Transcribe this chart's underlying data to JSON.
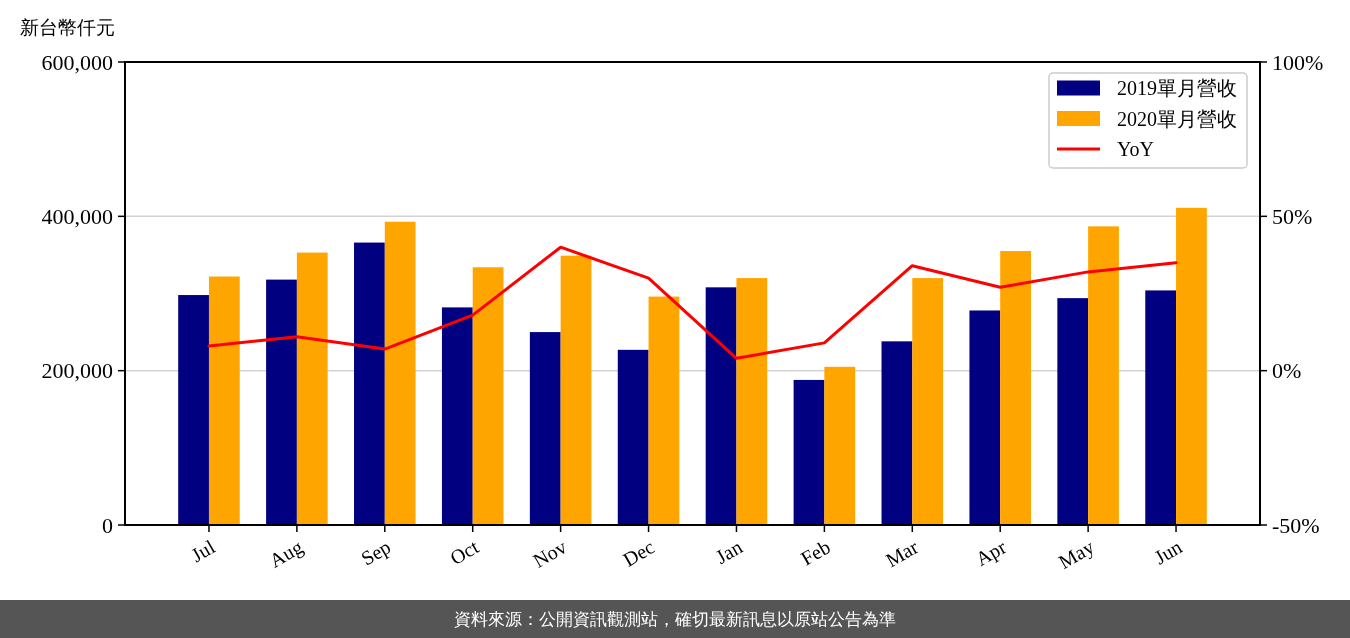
{
  "chart_data": {
    "type": "bar",
    "ylabel": "新台幣仟元",
    "categories": [
      "Jul",
      "Aug",
      "Sep",
      "Oct",
      "Nov",
      "Dec",
      "Jan",
      "Feb",
      "Mar",
      "Apr",
      "May",
      "Jun"
    ],
    "series": [
      {
        "name": "2019單月營收",
        "color": "#000080",
        "values": [
          298000,
          318000,
          366000,
          282000,
          250000,
          227000,
          308000,
          188000,
          238000,
          278000,
          294000,
          304000
        ]
      },
      {
        "name": "2020單月營收",
        "color": "#ffa500",
        "values": [
          322000,
          353000,
          393000,
          334000,
          349000,
          296000,
          320000,
          205000,
          320000,
          355000,
          387000,
          411000
        ]
      },
      {
        "name": "YoY",
        "type": "line",
        "axis": "y2",
        "color": "#ff0000",
        "values": [
          8,
          11,
          7,
          18,
          40,
          30,
          4,
          9,
          34,
          27,
          32,
          35
        ]
      }
    ],
    "ylim": [
      0,
      600000
    ],
    "yticks": [
      0,
      {
        "value": 200000,
        "label": "200,000"
      },
      {
        "value": 400000,
        "label": "400,000"
      },
      {
        "value": 600000,
        "label": "600,000"
      }
    ],
    "y2lim": [
      -50,
      100
    ],
    "y2ticks": [
      {
        "value": -50,
        "label": "-50%"
      },
      {
        "value": 0,
        "label": "0%"
      },
      {
        "value": 50,
        "label": "50%"
      },
      {
        "value": 100,
        "label": "100%"
      }
    ],
    "grid": "y",
    "legend": "top right",
    "annotations": [
      "資料來源：公開資訊觀測站，確切最新訊息以原站公告為準"
    ]
  }
}
